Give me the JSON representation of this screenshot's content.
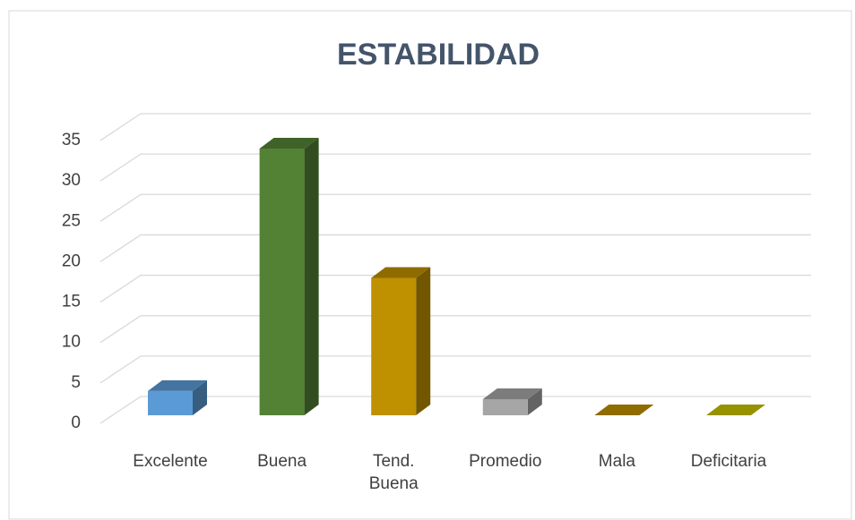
{
  "chart_data": {
    "type": "bar3d",
    "title": "ESTABILIDAD",
    "categories": [
      "Excelente",
      "Buena",
      "Tend. Buena",
      "Promedio",
      "Mala",
      "Deficitaria"
    ],
    "values": [
      3,
      33,
      17,
      2,
      0,
      0
    ],
    "colors": [
      "#5b9bd5",
      "#548235",
      "#bf9000",
      "#a5a5a5",
      "#bf9000",
      "#c9c300"
    ],
    "ylim": [
      0,
      35
    ],
    "yticks": [
      0,
      5,
      10,
      15,
      20,
      25,
      30,
      35
    ],
    "grid": true
  }
}
